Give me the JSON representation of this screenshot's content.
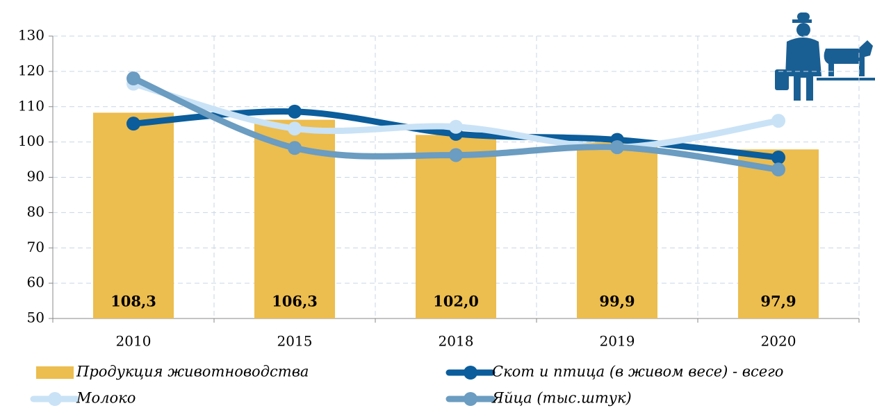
{
  "chart_data": {
    "type": "bar",
    "categories": [
      "2010",
      "2015",
      "2018",
      "2019",
      "2020"
    ],
    "values": [
      108.3,
      106.3,
      102.0,
      99.9,
      97.9
    ],
    "value_labels": [
      "108,3",
      "106,3",
      "102,0",
      "99,9",
      "97,9"
    ],
    "bar_name": "Продукция животноводства",
    "color": "#ecbd4f",
    "series": [
      {
        "name": "Скот и птица (в живом весе) - всего",
        "color": "#0b5d9b",
        "values": [
          105.2,
          108.6,
          102.3,
          100.6,
          95.6
        ]
      },
      {
        "name": "Молоко",
        "color": "#c9e2f6",
        "values": [
          116.5,
          103.8,
          104.3,
          98.5,
          106.0
        ]
      },
      {
        "name": "Яйца (тыс.штук)",
        "color": "#6b9cc1",
        "values": [
          118.0,
          98.3,
          96.3,
          98.5,
          92.2
        ]
      }
    ],
    "ylim": [
      50,
      130
    ],
    "yticks": [
      50,
      60,
      70,
      80,
      90,
      100,
      110,
      120,
      130
    ],
    "grid": true,
    "legend": "bottom"
  }
}
